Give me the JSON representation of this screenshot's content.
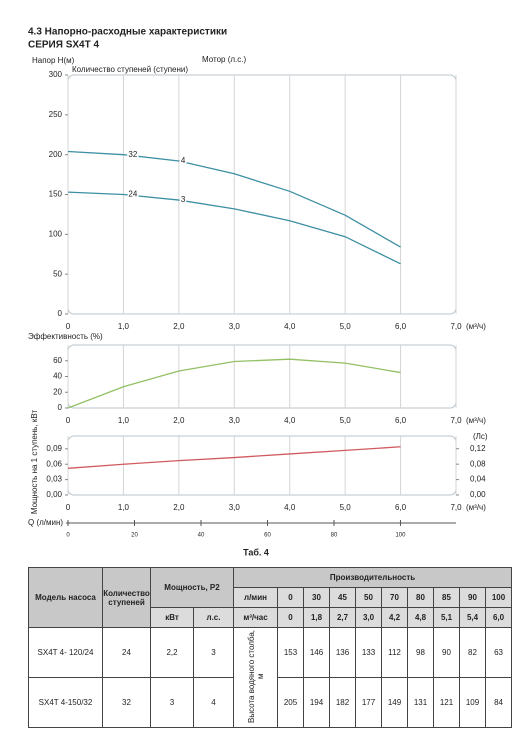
{
  "header": {
    "section": "4.3 Напорно-расходные характеристики",
    "series": "СЕРИЯ SX4T 4"
  },
  "chart_data": [
    {
      "type": "line",
      "ylabel": "Напор H(м)",
      "stages_label": "Количество ступеней (ступени)",
      "motor_label": "Мотор (л.с.)",
      "xlabel": "(м³/ч)",
      "x": [
        0,
        1,
        2,
        3,
        4,
        5,
        6
      ],
      "xlim": [
        0,
        7
      ],
      "xticks": [
        0,
        {
          "value": 1,
          "label": "1,0"
        },
        {
          "value": 2,
          "label": "2,0"
        },
        {
          "value": 3,
          "label": "3,0"
        },
        {
          "value": 4,
          "label": "4,0"
        },
        {
          "value": 5,
          "label": "5,0"
        },
        {
          "value": 6,
          "label": "6,0"
        },
        {
          "value": 7,
          "label": "7,0"
        }
      ],
      "ylim": [
        0,
        300
      ],
      "yticks": [
        0,
        50,
        100,
        150,
        200,
        250,
        300
      ],
      "grid": "x",
      "series": [
        {
          "name": "32",
          "motor": "4",
          "color": "#3d8fa3",
          "values": [
            204,
            200,
            192,
            176,
            154,
            124,
            84
          ]
        },
        {
          "name": "24",
          "motor": "3",
          "color": "#3d8fa3",
          "values": [
            153,
            150,
            143,
            132,
            117,
            97,
            63
          ]
        }
      ]
    },
    {
      "type": "line",
      "ylabel": "Эффективность (%)",
      "xlabel": "(м³/ч)",
      "x": [
        0,
        1,
        2,
        3,
        4,
        5,
        6
      ],
      "xlim": [
        0,
        7
      ],
      "xticks": [
        0,
        {
          "value": 1,
          "label": "1,0"
        },
        {
          "value": 2,
          "label": "2,0"
        },
        {
          "value": 3,
          "label": "3,0"
        },
        {
          "value": 4,
          "label": "4,0"
        },
        {
          "value": 5,
          "label": "5,0"
        },
        {
          "value": 6,
          "label": "6,0"
        },
        {
          "value": 7,
          "label": "7,0"
        }
      ],
      "ylim": [
        0,
        80
      ],
      "yticks": [
        0,
        20,
        40,
        60
      ],
      "grid": "x",
      "series": [
        {
          "color": "#93c064",
          "values": [
            0,
            27,
            47,
            59,
            62,
            57,
            45
          ]
        }
      ]
    },
    {
      "type": "line",
      "ylabel": "Мощность на 1 ступень, кВт",
      "y2label": "(Лс)",
      "xlabel": "(м³/ч)",
      "x": [
        0,
        1,
        2,
        3,
        4,
        5,
        6
      ],
      "xlim": [
        0,
        7
      ],
      "xticks": [
        0,
        {
          "value": 1,
          "label": "1,0"
        },
        {
          "value": 2,
          "label": "2,0"
        },
        {
          "value": 3,
          "label": "3,0"
        },
        {
          "value": 4,
          "label": "4,0"
        },
        {
          "value": 5,
          "label": "5,0"
        },
        {
          "value": 6,
          "label": "6,0"
        },
        {
          "value": 7,
          "label": "7,0"
        }
      ],
      "ylim": [
        0,
        0.115
      ],
      "yticks": [
        {
          "value": 0,
          "label": "0,00"
        },
        {
          "value": 0.03,
          "label": "0,03"
        },
        {
          "value": 0.06,
          "label": "0,06"
        },
        {
          "value": 0.09,
          "label": "0,09"
        }
      ],
      "y2lim": [
        0,
        0.153
      ],
      "y2ticks": [
        {
          "value": 0,
          "label": "0,00"
        },
        {
          "value": 0.04,
          "label": "0,04"
        },
        {
          "value": 0.08,
          "label": "0,08"
        },
        {
          "value": 0.12,
          "label": "0,12"
        }
      ],
      "grid": "x",
      "series": [
        {
          "color": "#d05a5f",
          "values": [
            0.052,
            0.06,
            0.067,
            0.073,
            0.08,
            0.087,
            0.094
          ]
        }
      ]
    }
  ],
  "flow_axis": {
    "label": "Q (л/мин)",
    "xlim": [
      0,
      116.7
    ],
    "xticks": [
      0,
      20,
      40,
      60,
      80,
      100
    ]
  },
  "table": {
    "title": "Таб. 4",
    "head": {
      "model": "Модель насоса",
      "stages": "Количество ступеней",
      "power": "Мощность, P2",
      "kw": "кВт",
      "hp": "л.с.",
      "capacity": "Производительность",
      "lpm": "л/мин",
      "m3h": "м³/час",
      "head_label": "Высота водяного столба, м"
    },
    "flow_lpm": [
      "0",
      "30",
      "45",
      "50",
      "70",
      "80",
      "85",
      "90",
      "100"
    ],
    "flow_m3h": [
      "0",
      "1,8",
      "2,7",
      "3,0",
      "4,2",
      "4,8",
      "5,1",
      "5,4",
      "6,0"
    ],
    "rows": [
      {
        "model": "SX4T 4- 120/24",
        "stages": "24",
        "kw": "2,2",
        "hp": "3",
        "heads": [
          "153",
          "146",
          "136",
          "133",
          "112",
          "98",
          "90",
          "82",
          "63"
        ]
      },
      {
        "model": "SX4T 4-150/32",
        "stages": "32",
        "kw": "3",
        "hp": "4",
        "heads": [
          "205",
          "194",
          "182",
          "177",
          "149",
          "131",
          "121",
          "109",
          "84"
        ]
      }
    ]
  }
}
